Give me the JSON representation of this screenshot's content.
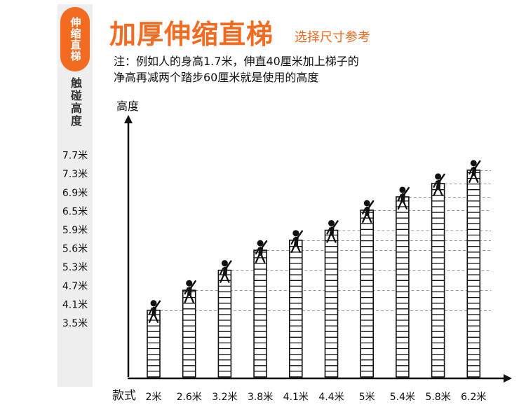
{
  "badge": {
    "text": "伸缩直梯"
  },
  "side_label": "触碰高度",
  "header": {
    "title": "加厚伸缩直梯",
    "subtitle": "选择尺寸参考"
  },
  "note": {
    "line1": "注：例如人的身高1.7米，伸直40厘米加上梯子的",
    "line2": "净高再减两个踏步60厘米就是使用的高度"
  },
  "colors": {
    "accent": "#f26b21",
    "panel": "#eeeeee",
    "axis": "#111111",
    "gridline": "#999999"
  },
  "chart_data": {
    "type": "bar",
    "ylabel": "高度",
    "xlabel": "款式",
    "categories": [
      "2米",
      "2.6米",
      "3.2米",
      "3.8米",
      "4.1米",
      "4.4米",
      "5米",
      "5.4米",
      "5.8米",
      "6.2米"
    ],
    "values": [
      2,
      2.6,
      3.2,
      3.8,
      4.1,
      4.4,
      5,
      5.4,
      5.8,
      6.2
    ],
    "touch_heights": [
      "3.5米",
      "4.1米",
      "4.7米",
      "5.3米",
      "5.6米",
      "5.9米",
      "6.5米",
      "6.9米",
      "7.3米",
      "7.7米"
    ],
    "grid": true
  }
}
